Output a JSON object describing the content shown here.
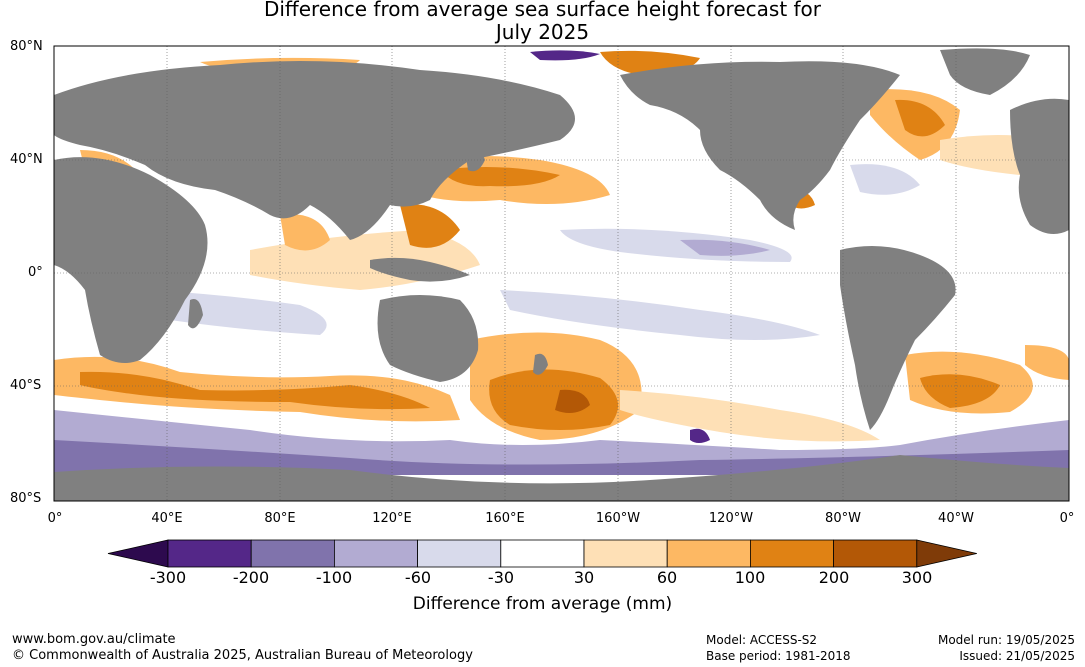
{
  "title_line1": "Difference from average sea surface height forecast for",
  "title_line2": "July 2025",
  "lat_labels": [
    "80°N",
    "40°N",
    "0°",
    "40°S",
    "80°S"
  ],
  "lon_labels": [
    "0°",
    "40°E",
    "80°E",
    "120°E",
    "160°E",
    "160°W",
    "120°W",
    "80°W",
    "40°W",
    "0°"
  ],
  "colorbar": {
    "ticks": [
      "-300",
      "-200",
      "-100",
      "-60",
      "-30",
      "30",
      "60",
      "100",
      "200",
      "300"
    ],
    "colors": [
      "#2d0a4e",
      "#542788",
      "#8073ac",
      "#b2abd2",
      "#d8daeb",
      "#ffffff",
      "#fee0b6",
      "#fdb863",
      "#e08214",
      "#b35806",
      "#7f3b08"
    ],
    "label": "Difference from average (mm)"
  },
  "map_colors": {
    "land": "#808080",
    "ocean": "#ffffff",
    "grid": "#606060"
  },
  "footer": {
    "url": "www.bom.gov.au/climate",
    "copyright": "© Commonwealth of Australia 2025, Australian Bureau of Meteorology",
    "model": "Model: ACCESS-S2",
    "base_period": "Base period: 1981-2018",
    "model_run": "Model run: 19/05/2025",
    "issued": "Issued: 21/05/2025"
  }
}
